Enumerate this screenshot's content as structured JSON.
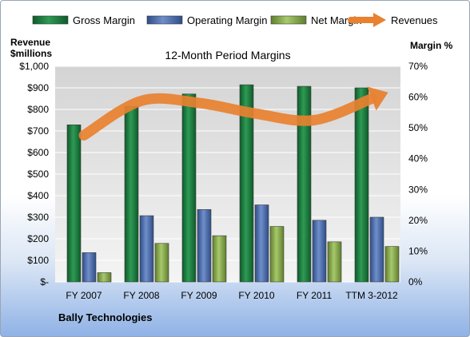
{
  "chart_data": {
    "type": "bar",
    "title": "12-Month Period Margins",
    "categories": [
      "FY 2007",
      "FY 2008",
      "FY 2009",
      "FY 2010",
      "FY 2011",
      "TTM 3-2012"
    ],
    "y_left_label_line1": "Revenue",
    "y_left_label_line2": "$millions",
    "y_right_label": "Margin %",
    "y_left_ticks": [
      "$-",
      "$100",
      "$200",
      "$300",
      "$400",
      "$500",
      "$600",
      "$700",
      "$800",
      "$900",
      "$1,000"
    ],
    "y_right_ticks": [
      "0%",
      "10%",
      "20%",
      "30%",
      "40%",
      "50%",
      "60%",
      "70%"
    ],
    "y_left_range": [
      0,
      1000
    ],
    "y_right_range": [
      0,
      70
    ],
    "series": [
      {
        "name": "Gross Margin",
        "axis": "right",
        "color": "#1f7a3f",
        "values": [
          51,
          57,
          61,
          64,
          63.5,
          63
        ]
      },
      {
        "name": "Operating Margin",
        "axis": "right",
        "color": "#4a6aa8",
        "values": [
          9.5,
          21.5,
          23.5,
          25,
          20,
          21
        ]
      },
      {
        "name": "Net Margin",
        "axis": "right",
        "color": "#8db052",
        "values": [
          3,
          12.5,
          15,
          18,
          13,
          11.5
        ]
      }
    ],
    "revenues": {
      "name": "Revenues",
      "axis": "left",
      "color": "#e88130",
      "values": [
        680,
        840,
        830,
        780,
        750,
        850
      ]
    },
    "legend_position": "top",
    "grid": true
  },
  "company": "Bally Technologies"
}
